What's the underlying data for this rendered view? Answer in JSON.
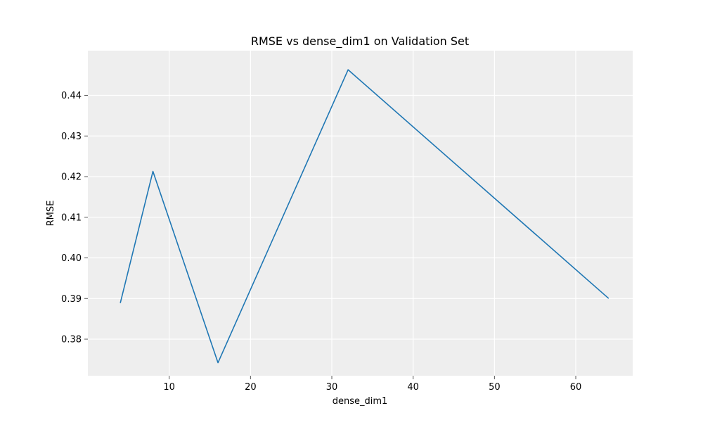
{
  "chart_data": {
    "type": "line",
    "title": "RMSE vs dense_dim1 on Validation Set",
    "xlabel": "dense_dim1",
    "ylabel": "RMSE",
    "xlim": [
      0.0,
      67.0
    ],
    "ylim": [
      0.371,
      0.451
    ],
    "xticks": [
      10,
      20,
      30,
      40,
      50,
      60
    ],
    "yticks": [
      0.38,
      0.39,
      0.4,
      0.41,
      0.42,
      0.43,
      0.44
    ],
    "xtick_labels": [
      "10",
      "20",
      "30",
      "40",
      "50",
      "60"
    ],
    "ytick_labels": [
      "0.38",
      "0.39",
      "0.40",
      "0.41",
      "0.42",
      "0.43",
      "0.44"
    ],
    "grid": true,
    "legend": "none",
    "background_color": "#eeeeee",
    "grid_color": "#ffffff",
    "series": [
      {
        "color": "#1f77b4",
        "x": [
          4,
          8,
          16,
          32,
          64
        ],
        "y": [
          0.389,
          0.4213,
          0.3742,
          0.4463,
          0.3901
        ]
      }
    ]
  }
}
